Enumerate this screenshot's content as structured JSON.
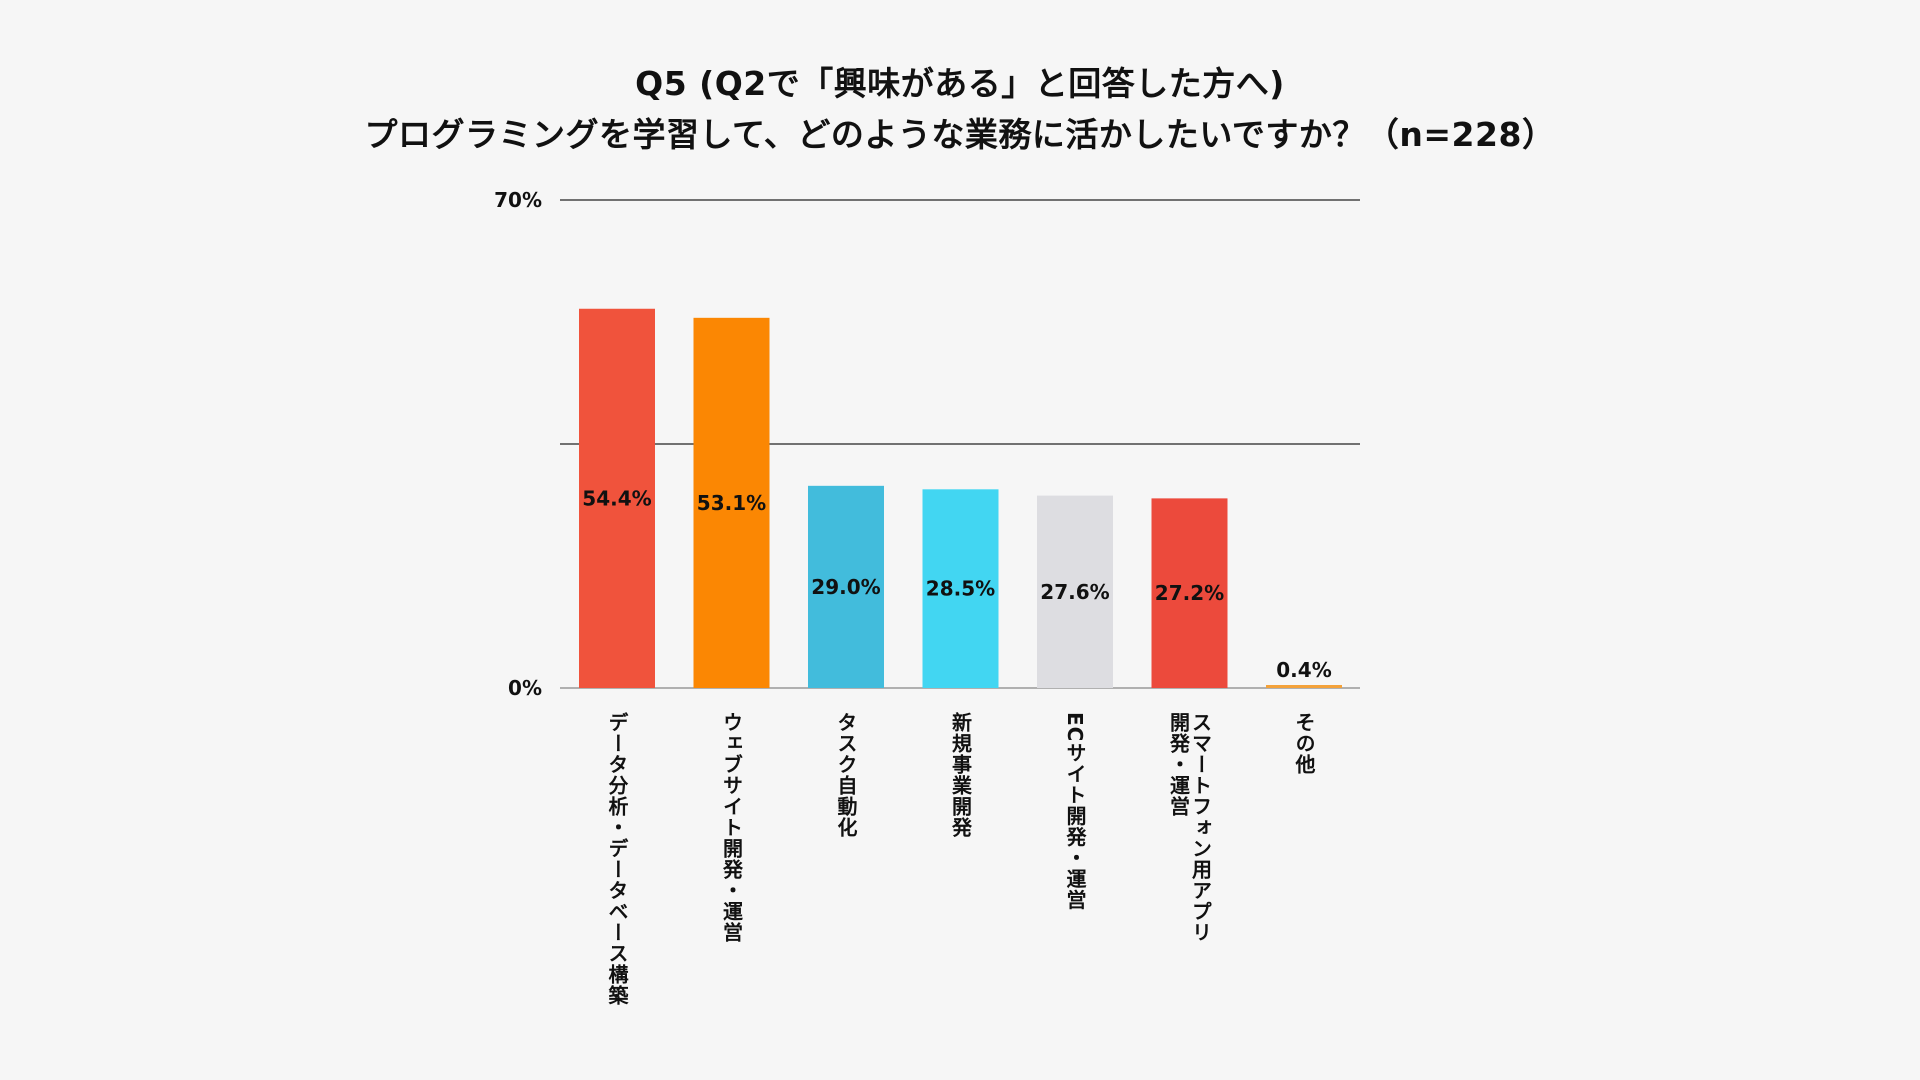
{
  "title": {
    "line1": "Q5 (Q2で「興味がある」と回答した方へ)",
    "line2": "プログラミングを学習して、どのような業務に活かしたいですか？（n=228）"
  },
  "chart_data": {
    "type": "bar",
    "categories": [
      "データ分析・データベース構築",
      "ウェブサイト開発・運営",
      "タスク自動化",
      "新規事業開発",
      "ECサイト開発・運営",
      "スマートフォン用アプリ開発・運営",
      "その他"
    ],
    "category_lines": [
      [
        "データ分析・データベース構築"
      ],
      [
        "ウェブサイト開発・運営"
      ],
      [
        "タスク自動化"
      ],
      [
        "新規事業開発"
      ],
      [
        "ECサイト開発・運営"
      ],
      [
        "スマートフォン用アプリ",
        "開発・運営"
      ],
      [
        "その他"
      ]
    ],
    "values": [
      54.4,
      53.1,
      29.0,
      28.5,
      27.6,
      27.2,
      0.4
    ],
    "value_labels": [
      "54.4%",
      "53.1%",
      "29.0%",
      "28.5%",
      "27.6%",
      "27.2%",
      "0.4%"
    ],
    "colors": [
      "#f0533c",
      "#fb8703",
      "#42bcdc",
      "#42d6f2",
      "#dddde1",
      "#ec4a3c",
      "#f4a23a"
    ],
    "ylim": [
      0,
      70
    ],
    "yticks": [
      0,
      35,
      70
    ],
    "ytick_labels": [
      "0%",
      "",
      "70%"
    ],
    "grid": true
  }
}
